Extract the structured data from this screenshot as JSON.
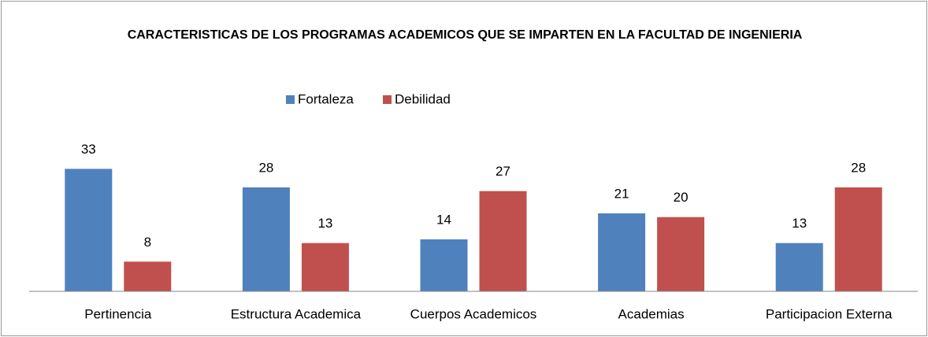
{
  "chart_data": {
    "type": "bar",
    "title": "CARACTERISTICAS DE LOS PROGRAMAS ACADEMICOS QUE SE IMPARTEN EN LA FACULTAD DE INGENIERIA",
    "categories": [
      "Pertinencia",
      "Estructura Academica",
      "Cuerpos Academicos",
      "Academias",
      "Participacion Externa"
    ],
    "series": [
      {
        "name": "Fortaleza",
        "color": "#4f81bd",
        "values": [
          33,
          28,
          14,
          21,
          13
        ]
      },
      {
        "name": "Debilidad",
        "color": "#c0504d",
        "values": [
          8,
          13,
          27,
          20,
          28
        ]
      }
    ],
    "ylim": [
      0,
      35
    ],
    "legend": "top"
  }
}
